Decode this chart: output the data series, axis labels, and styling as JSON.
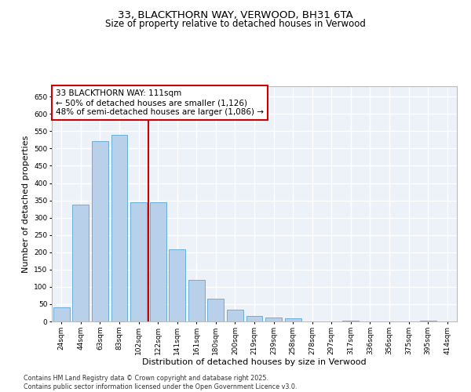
{
  "title_line1": "33, BLACKTHORN WAY, VERWOOD, BH31 6TA",
  "title_line2": "Size of property relative to detached houses in Verwood",
  "xlabel": "Distribution of detached houses by size in Verwood",
  "ylabel": "Number of detached properties",
  "categories": [
    "24sqm",
    "44sqm",
    "63sqm",
    "83sqm",
    "102sqm",
    "122sqm",
    "141sqm",
    "161sqm",
    "180sqm",
    "200sqm",
    "219sqm",
    "239sqm",
    "258sqm",
    "278sqm",
    "297sqm",
    "317sqm",
    "336sqm",
    "356sqm",
    "375sqm",
    "395sqm",
    "414sqm"
  ],
  "values": [
    40,
    338,
    522,
    540,
    345,
    345,
    208,
    120,
    65,
    35,
    15,
    12,
    10,
    0,
    0,
    2,
    0,
    0,
    0,
    2,
    0
  ],
  "bar_color": "#b8d0ea",
  "bar_edgecolor": "#6aaed6",
  "vline_x_index": 4,
  "vline_color": "#cc0000",
  "annotation_text": "33 BLACKTHORN WAY: 111sqm\n← 50% of detached houses are smaller (1,126)\n48% of semi-detached houses are larger (1,086) →",
  "annotation_box_facecolor": "white",
  "annotation_box_edgecolor": "#cc0000",
  "ylim": [
    0,
    680
  ],
  "yticks": [
    0,
    50,
    100,
    150,
    200,
    250,
    300,
    350,
    400,
    450,
    500,
    550,
    600,
    650
  ],
  "background_color": "#edf2f9",
  "grid_color": "white",
  "footer_text": "Contains HM Land Registry data © Crown copyright and database right 2025.\nContains public sector information licensed under the Open Government Licence v3.0.",
  "title_fontsize": 9.5,
  "subtitle_fontsize": 8.5,
  "axis_label_fontsize": 8,
  "tick_fontsize": 6.5,
  "annotation_fontsize": 7.5,
  "footer_fontsize": 5.8
}
